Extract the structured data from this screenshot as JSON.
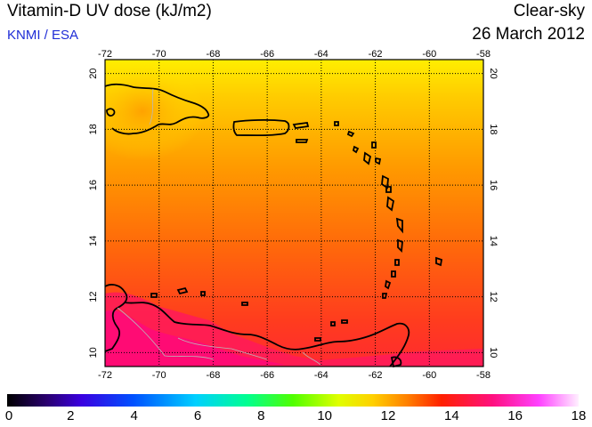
{
  "header": {
    "title": "Vitamin-D UV dose (kJ/m2)",
    "source": "KNMI / ESA",
    "sky": "Clear-sky",
    "date": "26 March 2012"
  },
  "map": {
    "lon_ticks": [
      "-72",
      "-70",
      "-68",
      "-66",
      "-64",
      "-62",
      "-60",
      "-58"
    ],
    "lat_ticks": [
      "20",
      "18",
      "16",
      "14",
      "12",
      "10"
    ],
    "lon_range": [
      -72,
      -58
    ],
    "lat_range": [
      9.5,
      20.5
    ],
    "grid": true
  },
  "colorbar": {
    "labels": [
      "0",
      "2",
      "4",
      "6",
      "8",
      "10",
      "12",
      "14",
      "16",
      "18"
    ],
    "range": [
      0,
      18
    ],
    "colors": [
      "#000000",
      "#3a00c8",
      "#0040ff",
      "#00c8ff",
      "#00ff80",
      "#60ff00",
      "#ffff00",
      "#ffa000",
      "#ff2000",
      "#ff1090",
      "#ff40ff",
      "#ffe0ff"
    ]
  },
  "field_colors": {
    "north": "#ffee00",
    "mid": "#ff8a00",
    "south": "#ff3c1e",
    "coast_south": "#ff0a6e"
  }
}
